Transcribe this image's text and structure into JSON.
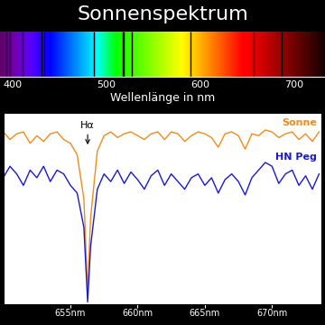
{
  "chart_data": [
    {
      "type": "spectrum",
      "title": "Sonnenspektrum",
      "xlabel": "Wellenlänge in nm",
      "xlim": [
        386.5,
        732.7
      ],
      "xticks": [
        400,
        500,
        600,
        700
      ],
      "tick_labels": "x",
      "absorption_lines": [
        393.4,
        396.8,
        410.2,
        430.8,
        434.0,
        486.1,
        516.9,
        518.4,
        527.0,
        589.0,
        656.3,
        686.7
      ]
    },
    {
      "type": "line",
      "x": [
        650.0,
        650.5,
        651.0,
        651.5,
        652.0,
        652.5,
        653.0,
        653.5,
        654.0,
        654.5,
        655.0,
        655.5,
        656.0,
        656.28,
        656.5,
        657.0,
        657.5,
        658.0,
        658.5,
        659.0,
        659.5,
        660.0,
        660.5,
        661.0,
        661.5,
        662.0,
        662.5,
        663.0,
        663.5,
        664.0,
        664.5,
        665.0,
        665.5,
        666.0,
        666.5,
        667.0,
        667.5,
        668.0,
        668.5,
        669.0,
        669.5,
        670.0,
        670.5,
        671.0,
        671.5,
        672.0,
        672.5,
        673.0,
        673.5
      ],
      "series": [
        {
          "name": "Sonne",
          "color": "#f08c1e",
          "values": [
            0.9,
            0.86,
            0.89,
            0.9,
            0.84,
            0.88,
            0.85,
            0.89,
            0.9,
            0.86,
            0.84,
            0.78,
            0.55,
            0.07,
            0.45,
            0.8,
            0.88,
            0.9,
            0.87,
            0.89,
            0.9,
            0.88,
            0.86,
            0.89,
            0.9,
            0.86,
            0.9,
            0.89,
            0.85,
            0.88,
            0.9,
            0.89,
            0.87,
            0.82,
            0.89,
            0.9,
            0.88,
            0.81,
            0.89,
            0.88,
            0.91,
            0.9,
            0.87,
            0.89,
            0.9,
            0.86,
            0.89,
            0.85,
            0.9
          ]
        },
        {
          "name": "HN Peg",
          "color": "#1a1acc",
          "values": [
            0.66,
            0.72,
            0.68,
            0.62,
            0.7,
            0.66,
            0.72,
            0.64,
            0.7,
            0.68,
            0.62,
            0.58,
            0.4,
            0.01,
            0.3,
            0.6,
            0.68,
            0.64,
            0.7,
            0.63,
            0.69,
            0.65,
            0.6,
            0.67,
            0.7,
            0.62,
            0.68,
            0.64,
            0.6,
            0.66,
            0.68,
            0.62,
            0.66,
            0.58,
            0.65,
            0.68,
            0.64,
            0.57,
            0.66,
            0.7,
            0.74,
            0.72,
            0.63,
            0.68,
            0.7,
            0.62,
            0.67,
            0.6,
            0.68
          ]
        }
      ],
      "xlim": [
        650,
        673.7
      ],
      "xticks": [
        {
          "value": 655,
          "label": "655nm"
        },
        {
          "value": 660,
          "label": "660nm"
        },
        {
          "value": 665,
          "label": "665nm"
        },
        {
          "value": 670,
          "label": "670nm"
        }
      ],
      "ylim": [
        0,
        1
      ],
      "tick_labels": "x",
      "annotations": [
        {
          "text": "Hα",
          "x": 656.28,
          "y": 0.82
        }
      ]
    }
  ]
}
